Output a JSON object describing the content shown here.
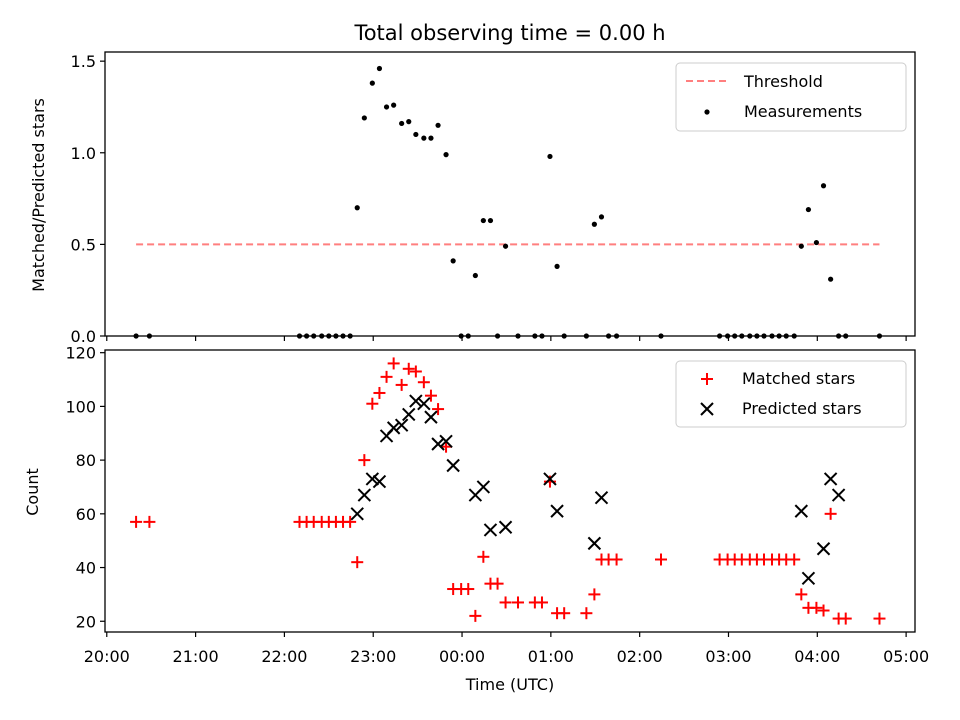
{
  "chart_data": [
    {
      "type": "scatter",
      "title": "Total observing time = 0.00 h",
      "ylabel": "Matched/Predicted stars",
      "xlabel": "",
      "x_unit": "hours since 20:00 UTC",
      "xlim": [
        -0.02,
        9.1
      ],
      "ylim": [
        0,
        1.55
      ],
      "yticks": [
        "0.0",
        "0.5",
        "1.0",
        "1.5"
      ],
      "ytick_values": [
        0,
        0.5,
        1.0,
        1.5
      ],
      "grid": false,
      "legend_position": "top-right",
      "threshold": {
        "name": "Threshold",
        "value": 0.5,
        "x_start": 0.33,
        "x_end": 8.7,
        "color": "#ff7f7f"
      },
      "series": [
        {
          "name": "Measurements",
          "color": "#000000",
          "x": [
            0.33,
            0.48,
            2.17,
            2.25,
            2.33,
            2.42,
            2.5,
            2.58,
            2.66,
            2.74,
            2.82,
            2.9,
            2.99,
            3.07,
            3.15,
            3.23,
            3.32,
            3.4,
            3.48,
            3.57,
            3.65,
            3.73,
            3.82,
            3.9,
            3.99,
            4.07,
            4.15,
            4.24,
            4.32,
            4.4,
            4.49,
            4.63,
            4.82,
            4.9,
            4.99,
            5.07,
            5.15,
            5.4,
            5.49,
            5.57,
            5.65,
            5.74,
            6.24,
            6.9,
            6.99,
            7.07,
            7.15,
            7.24,
            7.32,
            7.4,
            7.49,
            7.57,
            7.65,
            7.74,
            7.82,
            7.9,
            7.99,
            8.07,
            8.15,
            8.24,
            8.32,
            8.7
          ],
          "y": [
            0,
            0,
            0,
            0,
            0,
            0,
            0,
            0,
            0,
            0,
            0.7,
            1.19,
            1.38,
            1.46,
            1.25,
            1.26,
            1.16,
            1.17,
            1.1,
            1.08,
            1.08,
            1.15,
            0.99,
            0.41,
            0,
            0,
            0.33,
            0.63,
            0.63,
            0,
            0.49,
            0,
            0,
            0,
            0.98,
            0.38,
            0,
            0,
            0.61,
            0.65,
            0,
            0,
            0,
            0,
            0,
            0,
            0,
            0,
            0,
            0,
            0,
            0,
            0,
            0,
            0.49,
            0.69,
            0.51,
            0.82,
            0.31,
            0,
            0,
            0
          ]
        }
      ]
    },
    {
      "type": "scatter",
      "title": "",
      "ylabel": "Count",
      "xlabel": "Time (UTC)",
      "x_unit": "hours since 20:00 UTC",
      "xlim": [
        -0.02,
        9.1
      ],
      "ylim": [
        16,
        121
      ],
      "xticks": [
        "20:00",
        "21:00",
        "22:00",
        "23:00",
        "00:00",
        "01:00",
        "02:00",
        "03:00",
        "04:00",
        "05:00"
      ],
      "yticks": [
        "20",
        "40",
        "60",
        "80",
        "100",
        "120"
      ],
      "ytick_values": [
        20,
        40,
        60,
        80,
        100,
        120
      ],
      "grid": false,
      "legend_position": "top-right",
      "series": [
        {
          "name": "Matched stars",
          "marker": "plus",
          "color": "#ff0000",
          "x": [
            0.33,
            0.48,
            2.17,
            2.25,
            2.33,
            2.42,
            2.5,
            2.58,
            2.66,
            2.74,
            2.82,
            2.9,
            2.99,
            3.07,
            3.15,
            3.23,
            3.32,
            3.4,
            3.48,
            3.57,
            3.65,
            3.73,
            3.82,
            3.9,
            3.99,
            4.07,
            4.15,
            4.24,
            4.32,
            4.4,
            4.49,
            4.63,
            4.82,
            4.9,
            4.99,
            5.07,
            5.15,
            5.4,
            5.49,
            5.57,
            5.65,
            5.74,
            6.24,
            6.9,
            6.99,
            7.07,
            7.15,
            7.24,
            7.32,
            7.4,
            7.49,
            7.57,
            7.65,
            7.74,
            7.82,
            7.9,
            7.99,
            8.07,
            8.15,
            8.24,
            8.32,
            8.7
          ],
          "y": [
            57,
            57,
            57,
            57,
            57,
            57,
            57,
            57,
            57,
            57,
            42,
            80,
            101,
            105,
            111,
            116,
            108,
            114,
            113,
            109,
            104,
            99,
            85,
            32,
            32,
            32,
            22,
            44,
            34,
            34,
            27,
            27,
            27,
            27,
            72,
            23,
            23,
            23,
            30,
            43,
            43,
            43,
            43,
            43,
            43,
            43,
            43,
            43,
            43,
            43,
            43,
            43,
            43,
            43,
            30,
            25,
            25,
            24,
            60,
            21,
            21,
            21
          ]
        },
        {
          "name": "Predicted stars",
          "marker": "x",
          "color": "#000000",
          "x": [
            2.82,
            2.9,
            2.99,
            3.07,
            3.15,
            3.23,
            3.32,
            3.4,
            3.48,
            3.57,
            3.65,
            3.73,
            3.82,
            3.9,
            4.15,
            4.24,
            4.32,
            4.49,
            4.99,
            5.07,
            5.49,
            5.57,
            7.82,
            7.9,
            8.07,
            8.15,
            8.24
          ],
          "y": [
            60,
            67,
            73,
            72,
            89,
            92,
            93,
            97,
            102,
            101,
            96,
            86,
            87,
            78,
            67,
            70,
            54,
            55,
            73,
            61,
            49,
            66,
            61,
            36,
            47,
            73,
            67
          ]
        }
      ]
    }
  ]
}
